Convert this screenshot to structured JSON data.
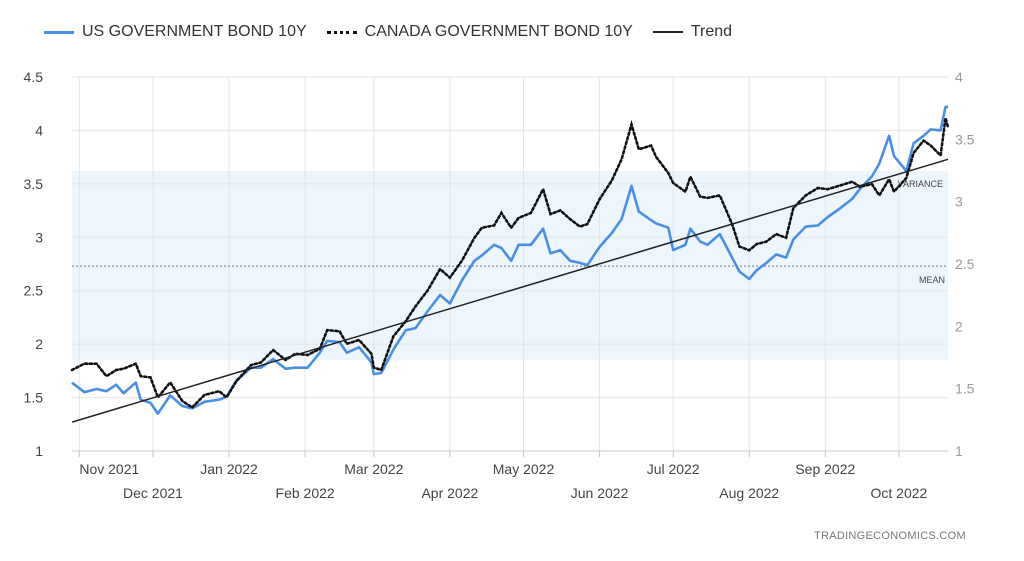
{
  "legend": {
    "us_label": "US GOVERNMENT BOND 10Y",
    "canada_label": "CANADA GOVERNMENT BOND 10Y",
    "trend_label": "Trend"
  },
  "colors": {
    "us": "#4a8fe7",
    "canada": "#111111",
    "trend": "#222222",
    "band": "#eef6fd"
  },
  "footer": {
    "source": "TRADINGECONOMICS.COM"
  },
  "chart_data": {
    "type": "line",
    "title": "",
    "xlabel": "",
    "x_tick_labels_top": [
      "Nov 2021",
      "Jan 2022",
      "Mar 2022",
      "May 2022",
      "Jul 2022",
      "Sep 2022"
    ],
    "x_tick_labels_bottom": [
      "Dec 2021",
      "Feb 2022",
      "Apr 2022",
      "Jun 2022",
      "Aug 2022",
      "Oct 2022"
    ],
    "y_left": {
      "ylim": [
        1,
        4.5
      ],
      "ticks": [
        "1",
        "1.5",
        "2",
        "2.5",
        "3",
        "3.5",
        "4",
        "4.5"
      ]
    },
    "y_right": {
      "ylim": [
        1,
        4
      ],
      "ticks": [
        "1",
        "1.5",
        "2",
        "2.5",
        "3",
        "3.5",
        "4"
      ]
    },
    "annotations": [
      "VARIANCE",
      "MEAN"
    ],
    "mean_left": 2.73,
    "variance_band_left": [
      1.85,
      3.62
    ],
    "grid": true,
    "legend_position": "top-left",
    "x_date_range": [
      "2021-10-29",
      "2022-10-21"
    ],
    "series": [
      {
        "name": "US GOVERNMENT BOND 10Y",
        "axis": "left",
        "style": "solid",
        "points": [
          [
            "2021-10-29",
            1.64
          ],
          [
            "2021-11-03",
            1.55
          ],
          [
            "2021-11-08",
            1.58
          ],
          [
            "2021-11-12",
            1.56
          ],
          [
            "2021-11-16",
            1.62
          ],
          [
            "2021-11-19",
            1.54
          ],
          [
            "2021-11-24",
            1.64
          ],
          [
            "2021-11-26",
            1.48
          ],
          [
            "2021-11-30",
            1.45
          ],
          [
            "2021-12-03",
            1.35
          ],
          [
            "2021-12-08",
            1.52
          ],
          [
            "2021-12-13",
            1.42
          ],
          [
            "2021-12-17",
            1.4
          ],
          [
            "2021-12-22",
            1.46
          ],
          [
            "2021-12-28",
            1.48
          ],
          [
            "2021-12-31",
            1.51
          ],
          [
            "2022-01-04",
            1.66
          ],
          [
            "2022-01-10",
            1.78
          ],
          [
            "2022-01-14",
            1.78
          ],
          [
            "2022-01-19",
            1.86
          ],
          [
            "2022-01-24",
            1.77
          ],
          [
            "2022-01-28",
            1.78
          ],
          [
            "2022-02-02",
            1.78
          ],
          [
            "2022-02-07",
            1.92
          ],
          [
            "2022-02-10",
            2.03
          ],
          [
            "2022-02-15",
            2.02
          ],
          [
            "2022-02-18",
            1.92
          ],
          [
            "2022-02-23",
            1.97
          ],
          [
            "2022-02-28",
            1.83
          ],
          [
            "2022-03-01",
            1.72
          ],
          [
            "2022-03-04",
            1.73
          ],
          [
            "2022-03-09",
            1.95
          ],
          [
            "2022-03-14",
            2.13
          ],
          [
            "2022-03-18",
            2.15
          ],
          [
            "2022-03-23",
            2.31
          ],
          [
            "2022-03-28",
            2.46
          ],
          [
            "2022-04-01",
            2.38
          ],
          [
            "2022-04-06",
            2.6
          ],
          [
            "2022-04-11",
            2.78
          ],
          [
            "2022-04-14",
            2.83
          ],
          [
            "2022-04-19",
            2.93
          ],
          [
            "2022-04-22",
            2.9
          ],
          [
            "2022-04-26",
            2.78
          ],
          [
            "2022-04-29",
            2.93
          ],
          [
            "2022-05-04",
            2.93
          ],
          [
            "2022-05-09",
            3.08
          ],
          [
            "2022-05-12",
            2.85
          ],
          [
            "2022-05-16",
            2.88
          ],
          [
            "2022-05-20",
            2.78
          ],
          [
            "2022-05-24",
            2.76
          ],
          [
            "2022-05-27",
            2.74
          ],
          [
            "2022-06-01",
            2.91
          ],
          [
            "2022-06-06",
            3.04
          ],
          [
            "2022-06-10",
            3.17
          ],
          [
            "2022-06-14",
            3.48
          ],
          [
            "2022-06-17",
            3.24
          ],
          [
            "2022-06-22",
            3.16
          ],
          [
            "2022-06-24",
            3.13
          ],
          [
            "2022-06-29",
            3.09
          ],
          [
            "2022-07-01",
            2.88
          ],
          [
            "2022-07-06",
            2.93
          ],
          [
            "2022-07-08",
            3.08
          ],
          [
            "2022-07-12",
            2.96
          ],
          [
            "2022-07-15",
            2.93
          ],
          [
            "2022-07-20",
            3.03
          ],
          [
            "2022-07-25",
            2.81
          ],
          [
            "2022-07-28",
            2.68
          ],
          [
            "2022-08-01",
            2.61
          ],
          [
            "2022-08-04",
            2.69
          ],
          [
            "2022-08-08",
            2.76
          ],
          [
            "2022-08-12",
            2.84
          ],
          [
            "2022-08-16",
            2.81
          ],
          [
            "2022-08-19",
            2.98
          ],
          [
            "2022-08-24",
            3.1
          ],
          [
            "2022-08-29",
            3.11
          ],
          [
            "2022-09-02",
            3.19
          ],
          [
            "2022-09-07",
            3.27
          ],
          [
            "2022-09-12",
            3.36
          ],
          [
            "2022-09-15",
            3.45
          ],
          [
            "2022-09-20",
            3.57
          ],
          [
            "2022-09-23",
            3.69
          ],
          [
            "2022-09-27",
            3.95
          ],
          [
            "2022-09-29",
            3.76
          ],
          [
            "2022-10-04",
            3.62
          ],
          [
            "2022-10-07",
            3.88
          ],
          [
            "2022-10-11",
            3.95
          ],
          [
            "2022-10-14",
            4.01
          ],
          [
            "2022-10-18",
            4.0
          ],
          [
            "2022-10-20",
            4.22
          ],
          [
            "2022-10-21",
            4.22
          ]
        ]
      },
      {
        "name": "CANADA GOVERNMENT BOND 10Y",
        "axis": "right",
        "style": "dotted",
        "points": [
          [
            "2021-10-29",
            1.65
          ],
          [
            "2021-11-03",
            1.7
          ],
          [
            "2021-11-08",
            1.7
          ],
          [
            "2021-11-12",
            1.6
          ],
          [
            "2021-11-16",
            1.65
          ],
          [
            "2021-11-19",
            1.66
          ],
          [
            "2021-11-24",
            1.7
          ],
          [
            "2021-11-26",
            1.6
          ],
          [
            "2021-11-30",
            1.59
          ],
          [
            "2021-12-03",
            1.43
          ],
          [
            "2021-12-08",
            1.55
          ],
          [
            "2021-12-13",
            1.4
          ],
          [
            "2021-12-17",
            1.35
          ],
          [
            "2021-12-22",
            1.45
          ],
          [
            "2021-12-28",
            1.48
          ],
          [
            "2021-12-31",
            1.43
          ],
          [
            "2022-01-04",
            1.56
          ],
          [
            "2022-01-10",
            1.69
          ],
          [
            "2022-01-14",
            1.71
          ],
          [
            "2022-01-19",
            1.81
          ],
          [
            "2022-01-24",
            1.73
          ],
          [
            "2022-01-28",
            1.78
          ],
          [
            "2022-02-02",
            1.77
          ],
          [
            "2022-02-07",
            1.82
          ],
          [
            "2022-02-10",
            1.97
          ],
          [
            "2022-02-15",
            1.96
          ],
          [
            "2022-02-18",
            1.86
          ],
          [
            "2022-02-23",
            1.89
          ],
          [
            "2022-02-28",
            1.78
          ],
          [
            "2022-03-01",
            1.67
          ],
          [
            "2022-03-04",
            1.65
          ],
          [
            "2022-03-09",
            1.92
          ],
          [
            "2022-03-14",
            2.04
          ],
          [
            "2022-03-18",
            2.16
          ],
          [
            "2022-03-23",
            2.29
          ],
          [
            "2022-03-28",
            2.46
          ],
          [
            "2022-04-01",
            2.39
          ],
          [
            "2022-04-06",
            2.53
          ],
          [
            "2022-04-11",
            2.71
          ],
          [
            "2022-04-14",
            2.79
          ],
          [
            "2022-04-19",
            2.81
          ],
          [
            "2022-04-22",
            2.91
          ],
          [
            "2022-04-26",
            2.79
          ],
          [
            "2022-04-29",
            2.87
          ],
          [
            "2022-05-04",
            2.91
          ],
          [
            "2022-05-09",
            3.1
          ],
          [
            "2022-05-12",
            2.9
          ],
          [
            "2022-05-16",
            2.93
          ],
          [
            "2022-05-20",
            2.86
          ],
          [
            "2022-05-24",
            2.8
          ],
          [
            "2022-05-27",
            2.82
          ],
          [
            "2022-06-01",
            3.02
          ],
          [
            "2022-06-06",
            3.17
          ],
          [
            "2022-06-10",
            3.34
          ],
          [
            "2022-06-14",
            3.62
          ],
          [
            "2022-06-17",
            3.42
          ],
          [
            "2022-06-22",
            3.45
          ],
          [
            "2022-06-24",
            3.36
          ],
          [
            "2022-06-29",
            3.23
          ],
          [
            "2022-07-01",
            3.15
          ],
          [
            "2022-07-06",
            3.08
          ],
          [
            "2022-07-08",
            3.2
          ],
          [
            "2022-07-12",
            3.04
          ],
          [
            "2022-07-15",
            3.03
          ],
          [
            "2022-07-20",
            3.05
          ],
          [
            "2022-07-25",
            2.82
          ],
          [
            "2022-07-28",
            2.64
          ],
          [
            "2022-08-01",
            2.61
          ],
          [
            "2022-08-04",
            2.66
          ],
          [
            "2022-08-08",
            2.68
          ],
          [
            "2022-08-12",
            2.74
          ],
          [
            "2022-08-16",
            2.71
          ],
          [
            "2022-08-19",
            2.95
          ],
          [
            "2022-08-24",
            3.05
          ],
          [
            "2022-08-29",
            3.11
          ],
          [
            "2022-09-02",
            3.1
          ],
          [
            "2022-09-07",
            3.13
          ],
          [
            "2022-09-12",
            3.16
          ],
          [
            "2022-09-15",
            3.12
          ],
          [
            "2022-09-20",
            3.14
          ],
          [
            "2022-09-23",
            3.05
          ],
          [
            "2022-09-27",
            3.18
          ],
          [
            "2022-09-29",
            3.08
          ],
          [
            "2022-10-04",
            3.19
          ],
          [
            "2022-10-07",
            3.39
          ],
          [
            "2022-10-11",
            3.49
          ],
          [
            "2022-10-14",
            3.45
          ],
          [
            "2022-10-18",
            3.37
          ],
          [
            "2022-10-20",
            3.67
          ],
          [
            "2022-10-21",
            3.6
          ]
        ]
      },
      {
        "name": "Trend",
        "axis": "left",
        "style": "solid",
        "points": [
          [
            "2021-10-29",
            1.27
          ],
          [
            "2022-10-21",
            3.73
          ]
        ]
      }
    ]
  }
}
